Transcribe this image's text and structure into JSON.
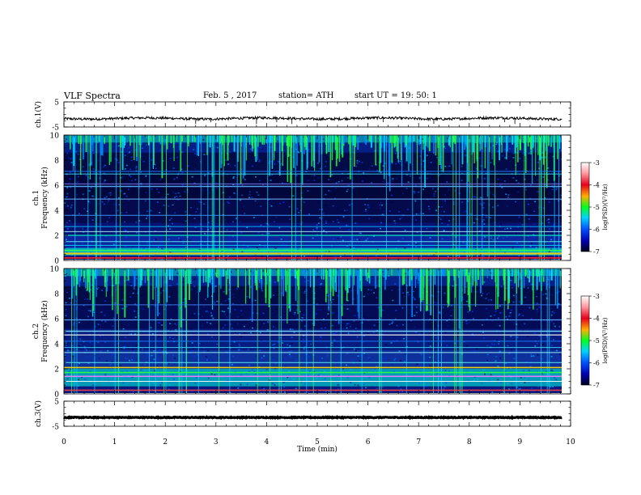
{
  "header": {
    "title": "VLF  Spectra",
    "date": "Feb. 5  , 2017",
    "station": "station= ATH",
    "start_ut": "start  UT  =    19: 50: 1"
  },
  "chart_data": [
    {
      "type": "line",
      "panel": "ch1-waveform",
      "ylabel": "ch.1(V)",
      "ylim": [
        -5,
        5
      ],
      "y_ticks": [
        "5",
        "-5"
      ],
      "xlim": [
        0,
        10
      ],
      "x_end": 9.83,
      "mean_value": -1.6
    },
    {
      "type": "heatmap",
      "panel": "ch1-spectrogram",
      "ylabel_line1": "ch.1",
      "ylabel_line2": "Frequency (kHz)",
      "ylim": [
        0,
        10
      ],
      "y_ticks": [
        "0",
        "2",
        "4",
        "6",
        "8",
        "10"
      ],
      "xlim": [
        0,
        10
      ],
      "colorbar": {
        "label": "log(PSD)(V²/Hz)",
        "range": [
          -7,
          -3
        ],
        "ticks": [
          "-3",
          "-4",
          "-5",
          "-6",
          "-7"
        ]
      }
    },
    {
      "type": "heatmap",
      "panel": "ch2-spectrogram",
      "ylabel_line1": "ch.2",
      "ylabel_line2": "Frequency (kHz)",
      "ylim": [
        0,
        10
      ],
      "y_ticks": [
        "0",
        "2",
        "4",
        "6",
        "8",
        "10"
      ],
      "xlim": [
        0,
        10
      ],
      "colorbar": {
        "label": "log(PSD)(V²/Hz)",
        "range": [
          -7,
          -3
        ],
        "ticks": [
          "-3",
          "-4",
          "-5",
          "-6",
          "-7"
        ]
      }
    },
    {
      "type": "line",
      "panel": "ch3-waveform",
      "ylabel": "ch.3(V)",
      "ylim": [
        -5,
        5
      ],
      "y_ticks": [
        "5",
        "-5"
      ],
      "xlim": [
        0,
        10
      ],
      "x_end": 9.83,
      "mean_value": -1.5,
      "xlabel": "Time  (min)",
      "x_ticks": [
        "0",
        "1",
        "2",
        "3",
        "4",
        "5",
        "6",
        "7",
        "8",
        "9",
        "10"
      ]
    }
  ]
}
